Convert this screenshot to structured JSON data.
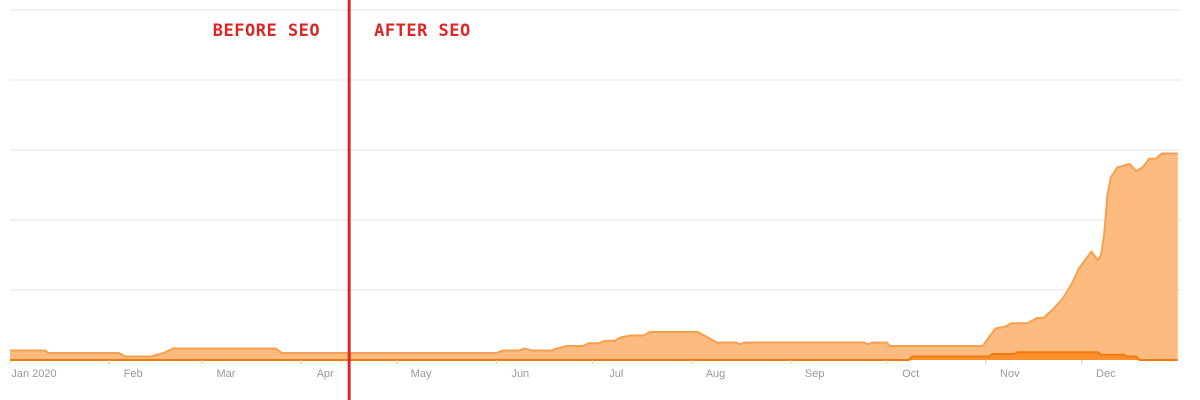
{
  "chart_data": {
    "type": "area",
    "x_unit": "date",
    "xlim": [
      "2020-01-01",
      "2020-12-31"
    ],
    "ylim": [
      0,
      100
    ],
    "gridlines": true,
    "y_ticks_labeled": false,
    "x_tick_labels": [
      {
        "label": "Jan 2020",
        "date": "2020-01-01"
      },
      {
        "label": "Feb",
        "date": "2020-02-01"
      },
      {
        "label": "Mar",
        "date": "2020-03-01"
      },
      {
        "label": "Apr",
        "date": "2020-04-01"
      },
      {
        "label": "May",
        "date": "2020-05-01"
      },
      {
        "label": "Jun",
        "date": "2020-06-01"
      },
      {
        "label": "Jul",
        "date": "2020-07-01"
      },
      {
        "label": "Aug",
        "date": "2020-08-01"
      },
      {
        "label": "Sep",
        "date": "2020-09-01"
      },
      {
        "label": "Oct",
        "date": "2020-10-01"
      },
      {
        "label": "Nov",
        "date": "2020-11-01"
      },
      {
        "label": "Dec",
        "date": "2020-12-01"
      }
    ],
    "annotations": {
      "divider_date": "2020-04-16",
      "divider_color": "#dc2626",
      "before_label": "BEFORE SEO",
      "after_label": "AFTER SEO"
    },
    "series": [
      {
        "color": "#f5a050",
        "fill": "#fdbb80",
        "points": [
          [
            "2020-01-01",
            2.7
          ],
          [
            "2020-01-12",
            2.7
          ],
          [
            "2020-01-13",
            2.0
          ],
          [
            "2020-02-04",
            2.0
          ],
          [
            "2020-02-06",
            1.0
          ],
          [
            "2020-02-14",
            1.0
          ],
          [
            "2020-02-18",
            2.0
          ],
          [
            "2020-02-21",
            3.3
          ],
          [
            "2020-03-24",
            3.3
          ],
          [
            "2020-03-26",
            2.0
          ],
          [
            "2020-06-01",
            2.0
          ],
          [
            "2020-06-03",
            2.7
          ],
          [
            "2020-06-08",
            2.7
          ],
          [
            "2020-06-10",
            3.3
          ],
          [
            "2020-06-12",
            2.7
          ],
          [
            "2020-06-18",
            2.7
          ],
          [
            "2020-06-20",
            3.3
          ],
          [
            "2020-06-23",
            4.0
          ],
          [
            "2020-06-28",
            4.0
          ],
          [
            "2020-06-30",
            4.8
          ],
          [
            "2020-07-03",
            4.8
          ],
          [
            "2020-07-05",
            5.5
          ],
          [
            "2020-07-08",
            5.5
          ],
          [
            "2020-07-10",
            6.5
          ],
          [
            "2020-07-13",
            7.0
          ],
          [
            "2020-07-17",
            7.0
          ],
          [
            "2020-07-19",
            8.0
          ],
          [
            "2020-08-03",
            8.0
          ],
          [
            "2020-08-06",
            6.5
          ],
          [
            "2020-08-09",
            5.0
          ],
          [
            "2020-08-15",
            5.0
          ],
          [
            "2020-08-16",
            4.5
          ],
          [
            "2020-08-18",
            5.0
          ],
          [
            "2020-09-24",
            5.0
          ],
          [
            "2020-09-25",
            4.5
          ],
          [
            "2020-09-27",
            5.0
          ],
          [
            "2020-10-01",
            5.0
          ],
          [
            "2020-10-02",
            4.0
          ],
          [
            "2020-10-31",
            4.0
          ],
          [
            "2020-11-02",
            6.5
          ],
          [
            "2020-11-04",
            9.0
          ],
          [
            "2020-11-07",
            9.5
          ],
          [
            "2020-11-09",
            10.5
          ],
          [
            "2020-11-14",
            10.5
          ],
          [
            "2020-11-17",
            12.0
          ],
          [
            "2020-11-19",
            12.0
          ],
          [
            "2020-11-22",
            14.5
          ],
          [
            "2020-11-25",
            17.5
          ],
          [
            "2020-11-28",
            22.0
          ],
          [
            "2020-11-30",
            26.0
          ],
          [
            "2020-12-02",
            28.5
          ],
          [
            "2020-12-04",
            31.0
          ],
          [
            "2020-12-06",
            28.5
          ],
          [
            "2020-12-07",
            30.0
          ],
          [
            "2020-12-08",
            36.0
          ],
          [
            "2020-12-09",
            47.0
          ],
          [
            "2020-12-10",
            52.0
          ],
          [
            "2020-12-12",
            55.0
          ],
          [
            "2020-12-14",
            55.5
          ],
          [
            "2020-12-16",
            56.0
          ],
          [
            "2020-12-18",
            54.0
          ],
          [
            "2020-12-20",
            55.0
          ],
          [
            "2020-12-22",
            57.5
          ],
          [
            "2020-12-24",
            57.5
          ],
          [
            "2020-12-26",
            59.0
          ],
          [
            "2020-12-28",
            59.0
          ],
          [
            "2020-12-30",
            59.0
          ],
          [
            "2020-12-31",
            59.0
          ]
        ]
      },
      {
        "color": "#f07a10",
        "fill": "#fb8f2c",
        "points": [
          [
            "2020-01-01",
            0
          ],
          [
            "2020-10-08",
            0
          ],
          [
            "2020-10-09",
            1.0
          ],
          [
            "2020-11-02",
            1.0
          ],
          [
            "2020-11-03",
            1.7
          ],
          [
            "2020-11-10",
            1.7
          ],
          [
            "2020-11-11",
            2.2
          ],
          [
            "2020-12-06",
            2.2
          ],
          [
            "2020-12-07",
            1.5
          ],
          [
            "2020-12-14",
            1.5
          ],
          [
            "2020-12-15",
            1.0
          ],
          [
            "2020-12-18",
            1.0
          ],
          [
            "2020-12-19",
            0
          ],
          [
            "2020-12-31",
            0
          ]
        ]
      }
    ]
  }
}
